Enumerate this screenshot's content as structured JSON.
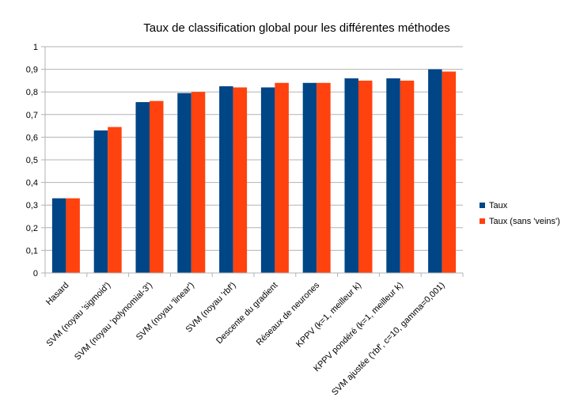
{
  "chart_data": {
    "type": "bar",
    "title": "Taux de classification global pour les différentes méthodes",
    "xlabel": "",
    "ylabel": "",
    "categories": [
      "Hasard",
      "SVM (noyau 'sigmoid')",
      "SVM (noyau 'polynomial-3')",
      "SVM (noyau 'linear')",
      "SVM (noyau 'rbf')",
      "Descente du gradient",
      "Réseaux de neurones",
      "KPPV (k=1, meilleur k)",
      "KPPV pondéré (k=1, meilleur k)",
      "SVM ajustée ('rbf', c=10, gamma=0,001)"
    ],
    "series": [
      {
        "name": "Taux",
        "color": "#004586",
        "values": [
          0.33,
          0.63,
          0.755,
          0.795,
          0.825,
          0.82,
          0.84,
          0.86,
          0.86,
          0.9
        ]
      },
      {
        "name": "Taux (sans 'veins')",
        "color": "#ff420e",
        "values": [
          0.33,
          0.645,
          0.76,
          0.8,
          0.82,
          0.84,
          0.84,
          0.85,
          0.85,
          0.89
        ]
      }
    ],
    "ylim": [
      0,
      1
    ],
    "yticks": [
      "0",
      "0,1",
      "0,2",
      "0,3",
      "0,4",
      "0,5",
      "0,6",
      "0,7",
      "0,8",
      "0,9",
      "1"
    ],
    "grid": true,
    "legend_position": "right"
  }
}
